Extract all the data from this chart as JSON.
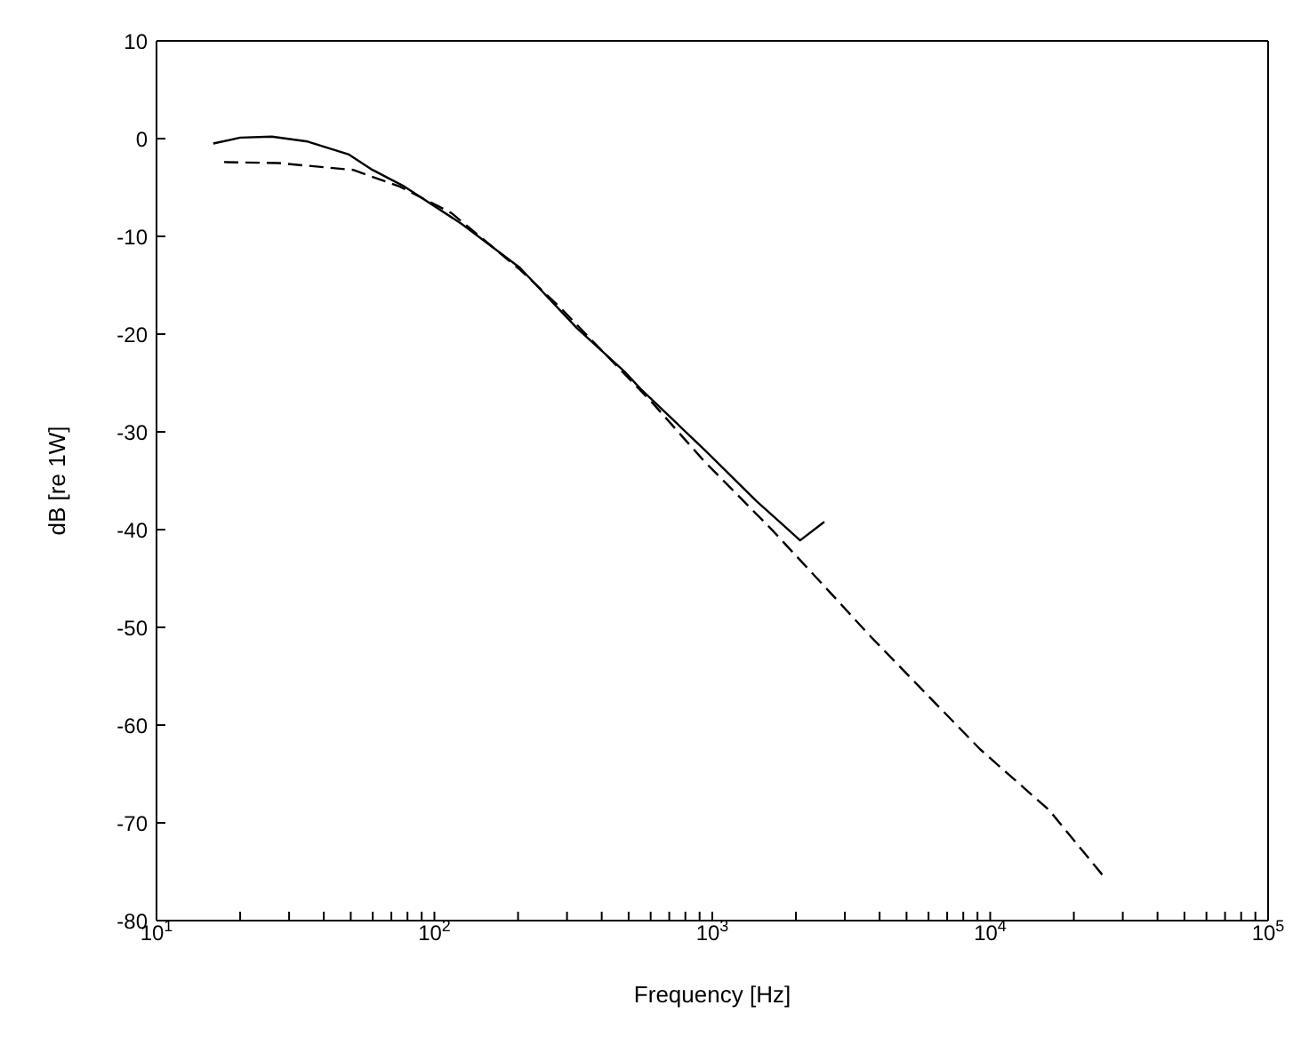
{
  "chart_data": {
    "type": "line",
    "xlabel": "Frequency [Hz]",
    "ylabel": "dB [re 1W]",
    "log": "x",
    "marker": "none",
    "xlim": [
      10,
      100000
    ],
    "xticks": [
      {
        "value": 10,
        "label": "10$^{1}$"
      },
      {
        "value": 20,
        "label": null
      },
      {
        "value": 30,
        "label": null
      },
      {
        "value": 40,
        "label": null
      },
      {
        "value": 50,
        "label": null
      },
      {
        "value": 60,
        "label": null
      },
      {
        "value": 70,
        "label": null
      },
      {
        "value": 80,
        "label": null
      },
      {
        "value": 90,
        "label": null
      },
      {
        "value": 100,
        "label": "10$^{2}$"
      },
      {
        "value": 200,
        "label": null
      },
      {
        "value": 300,
        "label": null
      },
      {
        "value": 400,
        "label": null
      },
      {
        "value": 500,
        "label": null
      },
      {
        "value": 600,
        "label": null
      },
      {
        "value": 700,
        "label": null
      },
      {
        "value": 800,
        "label": null
      },
      {
        "value": 900,
        "label": null
      },
      {
        "value": 1000,
        "label": "10$^{3}$"
      },
      {
        "value": 2000,
        "label": null
      },
      {
        "value": 3000,
        "label": null
      },
      {
        "value": 4000,
        "label": null
      },
      {
        "value": 5000,
        "label": null
      },
      {
        "value": 6000,
        "label": null
      },
      {
        "value": 7000,
        "label": null
      },
      {
        "value": 8000,
        "label": null
      },
      {
        "value": 9000,
        "label": null
      },
      {
        "value": 10000,
        "label": "10$^{4}$"
      },
      {
        "value": 20000,
        "label": null
      },
      {
        "value": 30000,
        "label": null
      },
      {
        "value": 40000,
        "label": null
      },
      {
        "value": 50000,
        "label": null
      },
      {
        "value": 60000,
        "label": null
      },
      {
        "value": 70000,
        "label": null
      },
      {
        "value": 80000,
        "label": null
      },
      {
        "value": 90000,
        "label": null
      },
      {
        "value": 100000,
        "label": "10$^{5}$"
      }
    ],
    "ylim": [
      -80,
      10
    ],
    "yticks": [
      -80,
      -70,
      -60,
      -50,
      -40,
      -30,
      -20,
      -10,
      0,
      10
    ],
    "series": [
      {
        "color": "#000000",
        "line_style": "solid",
        "x": [
          16,
          20,
          26,
          35,
          49,
          59,
          78,
          125,
          203,
          326,
          482,
          552,
          935,
          1444,
          1745,
          2070,
          2530
        ],
        "values": [
          -0.5,
          0.1,
          0.2,
          -0.3,
          -1.6,
          -3.1,
          -4.9,
          -8.7,
          -13.2,
          -19.4,
          -23.8,
          -25.6,
          -31.8,
          -37.1,
          -39.2,
          -41.1,
          -39.2
        ]
      },
      {
        "color": "#000000",
        "line_style": "dashed",
        "x": [
          17.5,
          27.5,
          51,
          75,
          115,
          153,
          203,
          284,
          612,
          935,
          1650,
          2790,
          3730,
          9220,
          16300,
          25800
        ],
        "values": [
          -2.4,
          -2.5,
          -3.2,
          -4.9,
          -7.6,
          -10.5,
          -13.4,
          -17.3,
          -27.1,
          -33,
          -40.1,
          -47.1,
          -51,
          -62.5,
          -68.7,
          -75.6
        ]
      }
    ]
  }
}
